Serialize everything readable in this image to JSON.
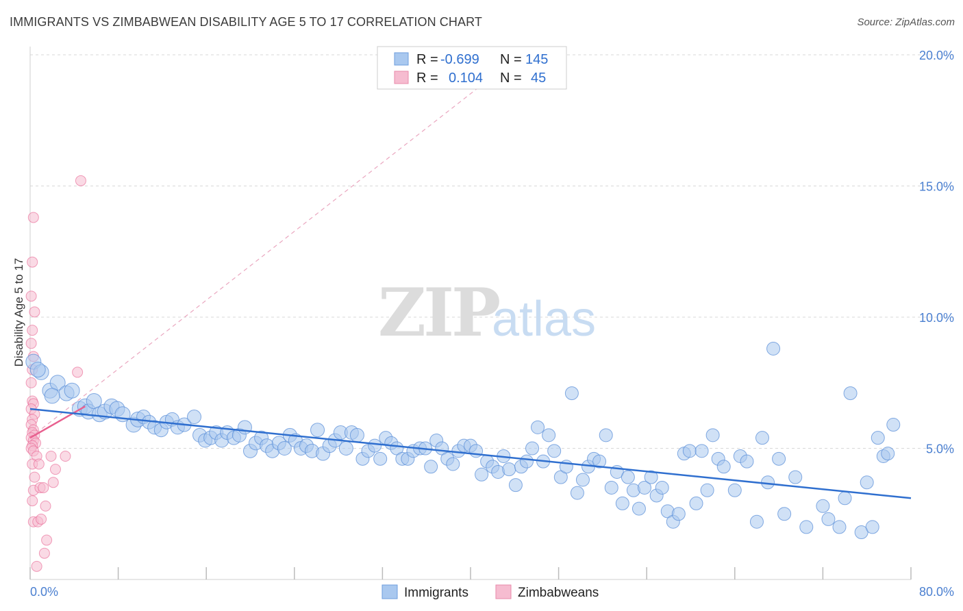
{
  "title": "IMMIGRANTS VS ZIMBABWEAN DISABILITY AGE 5 TO 17 CORRELATION CHART",
  "source": "Source: ZipAtlas.com",
  "watermark": {
    "zip": "ZIP",
    "atlas": "atlas"
  },
  "colors": {
    "blue": "#2f6fcf",
    "blue_fill": "#a9c8ef",
    "pink": "#e8608f",
    "pink_fill": "#f6bcd0",
    "grid": "#d8d8d8",
    "tick": "#4a7fd0"
  },
  "legend": {
    "rows": [
      {
        "r_label": "R =",
        "r_value": "-0.699",
        "n_label": "N =",
        "n_value": "145"
      },
      {
        "r_label": "R =",
        "r_value": "0.104",
        "n_label": "N =",
        "n_value": "45"
      }
    ]
  },
  "bottom_legend": {
    "immigrants": "Immigrants",
    "zimbabweans": "Zimbabweans"
  },
  "chart_data": {
    "type": "scatter",
    "title": "IMMIGRANTS VS ZIMBABWEAN DISABILITY AGE 5 TO 17 CORRELATION CHART",
    "xlabel": "",
    "ylabel": "Disability Age 5 to 17",
    "xlim": [
      0,
      80
    ],
    "ylim": [
      0,
      20
    ],
    "x_tick_labels": [
      "0.0%",
      "80.0%"
    ],
    "y_tick_labels": [
      "5.0%",
      "10.0%",
      "15.0%",
      "20.0%"
    ],
    "y_ticks": [
      5,
      10,
      15,
      20
    ],
    "grid": true,
    "legend_placement": "top-center",
    "series": [
      {
        "name": "Immigrants",
        "trend": {
          "x": [
            0,
            80
          ],
          "y": [
            6.5,
            3.1
          ]
        },
        "points": [
          [
            0.3,
            8.3
          ],
          [
            1.0,
            7.9
          ],
          [
            1.8,
            7.2
          ],
          [
            2.5,
            7.5
          ],
          [
            3.3,
            7.1
          ],
          [
            3.8,
            7.2
          ],
          [
            4.5,
            6.5
          ],
          [
            5.0,
            6.6
          ],
          [
            5.3,
            6.4
          ],
          [
            5.8,
            6.8
          ],
          [
            6.3,
            6.3
          ],
          [
            6.8,
            6.4
          ],
          [
            7.4,
            6.6
          ],
          [
            7.9,
            6.5
          ],
          [
            8.4,
            6.3
          ],
          [
            9.4,
            5.9
          ],
          [
            9.8,
            6.1
          ],
          [
            10.3,
            6.2
          ],
          [
            10.8,
            6.0
          ],
          [
            11.3,
            5.8
          ],
          [
            11.9,
            5.7
          ],
          [
            12.4,
            6.0
          ],
          [
            12.9,
            6.1
          ],
          [
            13.4,
            5.8
          ],
          [
            14.0,
            5.9
          ],
          [
            14.9,
            6.2
          ],
          [
            15.4,
            5.5
          ],
          [
            15.9,
            5.3
          ],
          [
            16.4,
            5.4
          ],
          [
            16.9,
            5.6
          ],
          [
            17.4,
            5.3
          ],
          [
            17.9,
            5.6
          ],
          [
            18.5,
            5.4
          ],
          [
            19.0,
            5.5
          ],
          [
            19.5,
            5.8
          ],
          [
            20.0,
            4.9
          ],
          [
            20.5,
            5.2
          ],
          [
            21.0,
            5.4
          ],
          [
            21.5,
            5.1
          ],
          [
            22.0,
            4.9
          ],
          [
            22.6,
            5.2
          ],
          [
            23.1,
            5.0
          ],
          [
            23.6,
            5.5
          ],
          [
            24.1,
            5.3
          ],
          [
            24.6,
            5.0
          ],
          [
            25.1,
            5.1
          ],
          [
            25.6,
            4.9
          ],
          [
            26.1,
            5.7
          ],
          [
            26.6,
            4.8
          ],
          [
            27.2,
            5.1
          ],
          [
            27.7,
            5.3
          ],
          [
            28.2,
            5.6
          ],
          [
            28.7,
            5.0
          ],
          [
            29.2,
            5.6
          ],
          [
            29.7,
            5.5
          ],
          [
            30.2,
            4.6
          ],
          [
            30.7,
            4.9
          ],
          [
            31.3,
            5.1
          ],
          [
            31.8,
            4.6
          ],
          [
            32.3,
            5.4
          ],
          [
            32.8,
            5.2
          ],
          [
            33.3,
            5.0
          ],
          [
            33.8,
            4.6
          ],
          [
            34.3,
            4.6
          ],
          [
            34.8,
            4.9
          ],
          [
            35.4,
            5.0
          ],
          [
            35.9,
            5.0
          ],
          [
            36.4,
            4.3
          ],
          [
            36.9,
            5.3
          ],
          [
            37.4,
            5.0
          ],
          [
            37.9,
            4.6
          ],
          [
            38.4,
            4.4
          ],
          [
            38.9,
            4.9
          ],
          [
            39.4,
            5.1
          ],
          [
            40.0,
            5.1
          ],
          [
            40.5,
            4.9
          ],
          [
            41.0,
            4.0
          ],
          [
            41.5,
            4.5
          ],
          [
            42.0,
            4.3
          ],
          [
            42.5,
            4.1
          ],
          [
            43.0,
            4.7
          ],
          [
            43.5,
            4.2
          ],
          [
            44.1,
            3.6
          ],
          [
            44.6,
            4.3
          ],
          [
            45.1,
            4.5
          ],
          [
            45.6,
            5.0
          ],
          [
            46.1,
            5.8
          ],
          [
            46.6,
            4.5
          ],
          [
            47.1,
            5.5
          ],
          [
            47.6,
            4.9
          ],
          [
            48.2,
            3.9
          ],
          [
            48.7,
            4.3
          ],
          [
            49.2,
            7.1
          ],
          [
            49.7,
            3.3
          ],
          [
            50.2,
            3.8
          ],
          [
            50.7,
            4.3
          ],
          [
            51.2,
            4.6
          ],
          [
            51.7,
            4.5
          ],
          [
            52.3,
            5.5
          ],
          [
            52.8,
            3.5
          ],
          [
            53.3,
            4.1
          ],
          [
            53.8,
            2.9
          ],
          [
            54.3,
            3.9
          ],
          [
            54.8,
            3.4
          ],
          [
            55.3,
            2.7
          ],
          [
            55.8,
            3.5
          ],
          [
            56.4,
            3.9
          ],
          [
            56.9,
            3.2
          ],
          [
            57.4,
            3.5
          ],
          [
            57.9,
            2.6
          ],
          [
            58.4,
            2.2
          ],
          [
            58.9,
            2.5
          ],
          [
            59.4,
            4.8
          ],
          [
            59.9,
            4.9
          ],
          [
            60.5,
            2.9
          ],
          [
            61.0,
            4.9
          ],
          [
            61.5,
            3.4
          ],
          [
            62.0,
            5.5
          ],
          [
            62.5,
            4.6
          ],
          [
            63.0,
            4.3
          ],
          [
            64.0,
            3.4
          ],
          [
            64.5,
            4.7
          ],
          [
            65.1,
            4.5
          ],
          [
            66.0,
            2.2
          ],
          [
            66.5,
            5.4
          ],
          [
            67.0,
            3.7
          ],
          [
            67.5,
            8.8
          ],
          [
            68.0,
            4.6
          ],
          [
            68.5,
            2.5
          ],
          [
            69.5,
            3.9
          ],
          [
            70.5,
            2.0
          ],
          [
            72.0,
            2.8
          ],
          [
            72.5,
            2.3
          ],
          [
            73.5,
            2.0
          ],
          [
            74.0,
            3.1
          ],
          [
            74.5,
            7.1
          ],
          [
            75.5,
            1.8
          ],
          [
            76.0,
            3.7
          ],
          [
            76.5,
            2.0
          ],
          [
            77.0,
            5.4
          ],
          [
            77.5,
            4.7
          ],
          [
            77.9,
            4.8
          ],
          [
            78.4,
            5.9
          ],
          [
            0.7,
            8.0
          ],
          [
            2.0,
            7.0
          ]
        ]
      },
      {
        "name": "Zimbabweans",
        "trend": {
          "x": [
            0,
            5
          ],
          "y": [
            5.4,
            6.6
          ]
        },
        "trend_extended": {
          "x": [
            0,
            43
          ],
          "y": [
            5.4,
            19.5
          ]
        },
        "points": [
          [
            0.3,
            13.8
          ],
          [
            0.2,
            12.1
          ],
          [
            0.1,
            10.8
          ],
          [
            0.4,
            10.2
          ],
          [
            0.2,
            9.5
          ],
          [
            0.1,
            9.0
          ],
          [
            0.3,
            8.5
          ],
          [
            0.2,
            8.0
          ],
          [
            0.1,
            7.5
          ],
          [
            0.2,
            6.8
          ],
          [
            0.3,
            6.7
          ],
          [
            0.1,
            6.5
          ],
          [
            0.4,
            6.3
          ],
          [
            0.2,
            6.1
          ],
          [
            0.1,
            5.9
          ],
          [
            0.3,
            5.7
          ],
          [
            0.2,
            5.6
          ],
          [
            0.4,
            5.5
          ],
          [
            0.1,
            5.4
          ],
          [
            0.3,
            5.3
          ],
          [
            0.5,
            5.2
          ],
          [
            0.2,
            5.1
          ],
          [
            0.1,
            5.0
          ],
          [
            0.3,
            4.9
          ],
          [
            0.6,
            4.7
          ],
          [
            0.2,
            4.4
          ],
          [
            0.8,
            4.4
          ],
          [
            0.4,
            3.9
          ],
          [
            0.3,
            3.4
          ],
          [
            0.9,
            3.5
          ],
          [
            1.2,
            3.5
          ],
          [
            0.2,
            3.0
          ],
          [
            1.4,
            2.8
          ],
          [
            0.3,
            2.2
          ],
          [
            0.7,
            2.2
          ],
          [
            1.0,
            2.3
          ],
          [
            1.5,
            1.5
          ],
          [
            1.3,
            1.0
          ],
          [
            0.6,
            0.5
          ],
          [
            4.6,
            15.2
          ],
          [
            4.3,
            7.9
          ],
          [
            3.2,
            4.7
          ],
          [
            2.3,
            4.2
          ],
          [
            2.1,
            3.7
          ],
          [
            1.9,
            4.7
          ]
        ]
      }
    ]
  }
}
